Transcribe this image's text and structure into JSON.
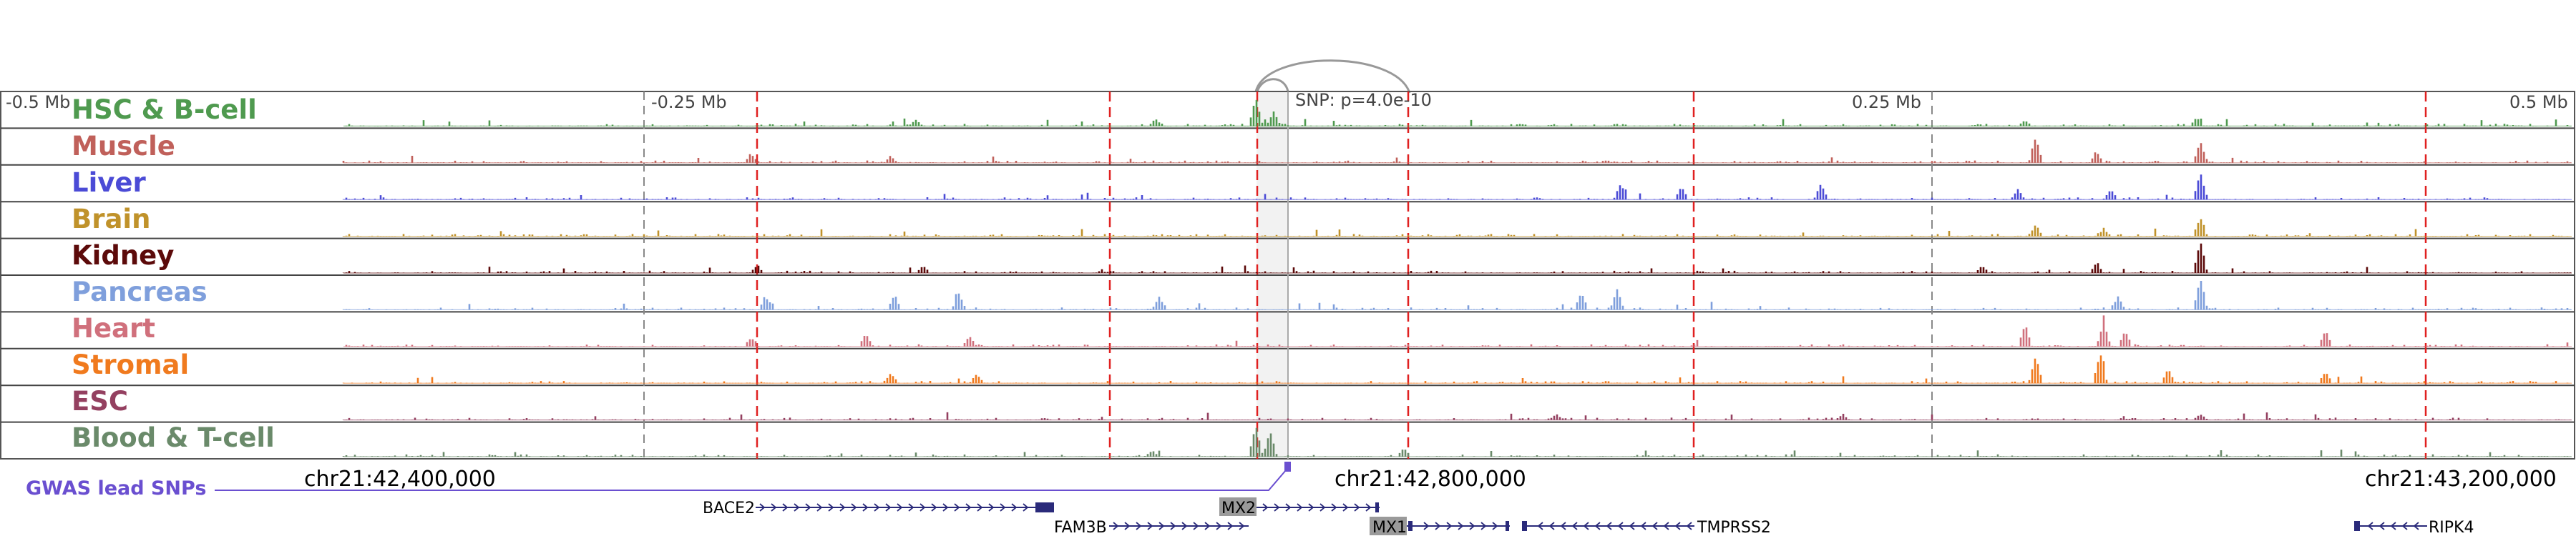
{
  "tracks": [
    {
      "label": "HSC & B-cell",
      "color": "#4f9a4f"
    },
    {
      "label": "Muscle",
      "color": "#c0605a"
    },
    {
      "label": "Liver",
      "color": "#4b4bd6"
    },
    {
      "label": "Brain",
      "color": "#c0922a"
    },
    {
      "label": "Kidney",
      "color": "#5c0a0a"
    },
    {
      "label": "Pancreas",
      "color": "#7f9fdc"
    },
    {
      "label": "Heart",
      "color": "#d0707c"
    },
    {
      "label": "Stromal",
      "color": "#f07a1e"
    },
    {
      "label": "ESC",
      "color": "#944060"
    },
    {
      "label": "Blood & T-cell",
      "color": "#6a8a6a"
    }
  ],
  "scale_labels": {
    "left_end": "-0.5 Mb",
    "left_mid": "-0.25 Mb",
    "right_mid": "0.25 Mb",
    "right_end": "0.5 Mb"
  },
  "snp_annotation": "SNP: p=4.0e-10",
  "gwas_label": "GWAS lead SNPs",
  "gwas_color": "#6a4fd0",
  "coordinates": [
    "chr21:42,400,000",
    "chr21:42,800,000",
    "chr21:43,200,000"
  ],
  "genes": {
    "bace2": "BACE2",
    "mx2": "MX2",
    "fam3b": "FAM3B",
    "mx1": "MX1",
    "tmprss2": "TMPRSS2",
    "ripk4": "RIPK4"
  },
  "gene_color": "#2a2a7a",
  "loop_color": "#999999",
  "highlight_line_color": "#e02020"
}
